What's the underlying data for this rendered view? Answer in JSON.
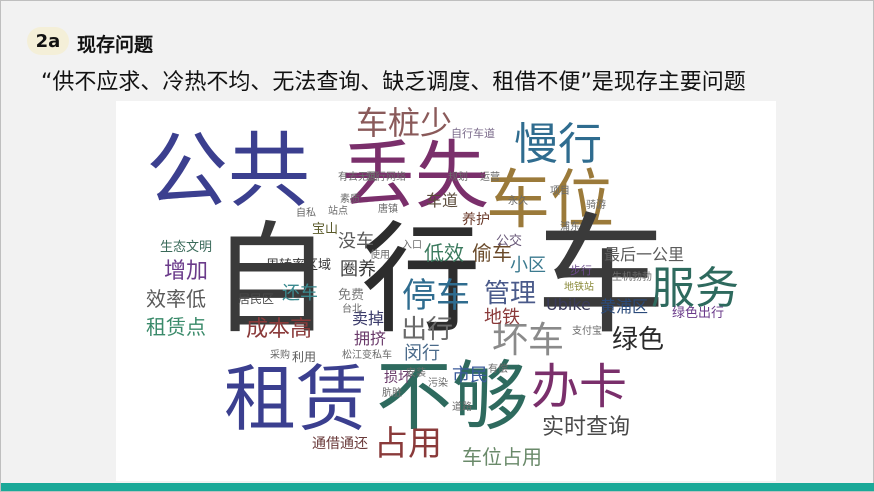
{
  "slide": {
    "badge": "2a",
    "title": "现存问题",
    "subtitle": "“供不应求、冷热不均、无法查询、缺乏调度、租借不便”是现存主要问题"
  },
  "words": [
    {
      "text": "公共",
      "color": "#3b3f8f"
    },
    {
      "text": "丢失",
      "color": "#7a2f6b"
    },
    {
      "text": "车位",
      "color": "#9b7a3a"
    },
    {
      "text": "慢行",
      "color": "#2f6c8f"
    },
    {
      "text": "车桩少",
      "color": "#8a5a5a"
    },
    {
      "text": "自行车道",
      "color": "#7a6a8a"
    },
    {
      "text": "自",
      "color": "#3a3a3a"
    },
    {
      "text": "行",
      "color": "#2d2d2d"
    },
    {
      "text": "车",
      "color": "#3a3a3a"
    },
    {
      "text": "租赁",
      "color": "#3b3f8f"
    },
    {
      "text": "不够",
      "color": "#2e6a5e"
    },
    {
      "text": "办卡",
      "color": "#7a2f6b"
    },
    {
      "text": "服务",
      "color": "#2e6a5e"
    },
    {
      "text": "停车",
      "color": "#2f6c8f"
    },
    {
      "text": "管理",
      "color": "#4a5a8a"
    },
    {
      "text": "小区",
      "color": "#3b7a8f"
    },
    {
      "text": "低效",
      "color": "#3b7a5e"
    },
    {
      "text": "偷车",
      "color": "#6a4a2a"
    },
    {
      "text": "公交",
      "color": "#6a5a7a"
    },
    {
      "text": "车道",
      "color": "#5a4a3a"
    },
    {
      "text": "养护",
      "color": "#6a3a2a"
    },
    {
      "text": "没车",
      "color": "#5a5a5a"
    },
    {
      "text": "圈养",
      "color": "#3a3a3a"
    },
    {
      "text": "增加",
      "color": "#6a3a8a"
    },
    {
      "text": "效率低",
      "color": "#5a5a5a"
    },
    {
      "text": "租赁点",
      "color": "#3a8a6a"
    },
    {
      "text": "成本高",
      "color": "#8a3a3a"
    },
    {
      "text": "还车",
      "color": "#3b8a8f"
    },
    {
      "text": "周转率区域",
      "color": "#3a3a3a"
    },
    {
      "text": "居民区",
      "color": "#4a4a4a"
    },
    {
      "text": "卖掉",
      "color": "#3a3a6a"
    },
    {
      "text": "拥挤",
      "color": "#6a3a6a"
    },
    {
      "text": "出行",
      "color": "#6a6a6a"
    },
    {
      "text": "闵行",
      "color": "#4a6a8a"
    },
    {
      "text": "坏车",
      "color": "#8a8a8a"
    },
    {
      "text": "地铁",
      "color": "#8a3a3a"
    },
    {
      "text": "Ubike",
      "color": "#3a3a5a"
    },
    {
      "text": "黄浦区",
      "color": "#2a4a7a"
    },
    {
      "text": "绿色",
      "color": "#2a2a2a"
    },
    {
      "text": "绿色出行",
      "color": "#6a3a8a"
    },
    {
      "text": "最后一公里",
      "color": "#5a5a5a"
    },
    {
      "text": "实时查询",
      "color": "#4a4a4a"
    },
    {
      "text": "占用",
      "color": "#8a3a3a"
    },
    {
      "text": "车位占用",
      "color": "#6a8a6a"
    },
    {
      "text": "通借通还",
      "color": "#6a3a3a"
    },
    {
      "text": "市民",
      "color": "#3a5a9a"
    },
    {
      "text": "损坏",
      "color": "#6a3a6a"
    },
    {
      "text": "生态文明",
      "color": "#3a6a5a"
    },
    {
      "text": "宝山",
      "color": "#5a5a2a"
    },
    {
      "text": "免费",
      "color": "#7a7a7a"
    },
    {
      "text": "利用",
      "color": "#5a5a5a"
    },
    {
      "text": "步行",
      "color": "#6a4a8a"
    },
    {
      "text": "生机勃勃",
      "color": "#6a6a6a"
    },
    {
      "text": "地铁站",
      "color": "#8a8a3a"
    },
    {
      "text": "骑游",
      "color": "#6a6a6a"
    },
    {
      "text": "项目",
      "color": "#6a6a6a"
    },
    {
      "text": "浦东",
      "color": "#6a6a6a"
    },
    {
      "text": "规划",
      "color": "#6a6a6a"
    },
    {
      "text": "运营",
      "color": "#6a6a6a"
    },
    {
      "text": "慢行网络",
      "color": "#6a6a6a"
    },
    {
      "text": "有去无回",
      "color": "#6a6a6a"
    },
    {
      "text": "素质",
      "color": "#6a6a6a"
    },
    {
      "text": "唐镇",
      "color": "#6a6a6a"
    },
    {
      "text": "站点",
      "color": "#6a6a6a"
    },
    {
      "text": "自私",
      "color": "#6a6a6a"
    },
    {
      "text": "永久",
      "color": "#6a6a6a"
    },
    {
      "text": "入口",
      "color": "#6a6a6a"
    },
    {
      "text": "使用",
      "color": "#6a6a6a"
    },
    {
      "text": "台北",
      "color": "#6a6a6a"
    },
    {
      "text": "采购",
      "color": "#6a6a6a"
    },
    {
      "text": "松江变私车",
      "color": "#6a6a6a"
    },
    {
      "text": "安装",
      "color": "#6a6a6a"
    },
    {
      "text": "污染",
      "color": "#6a6a6a"
    },
    {
      "text": "肮脏",
      "color": "#6a6a6a"
    },
    {
      "text": "道路",
      "color": "#6a6a6a"
    },
    {
      "text": "有偿",
      "color": "#6a6a6a"
    },
    {
      "text": "支付宝",
      "color": "#6a6a6a"
    }
  ]
}
